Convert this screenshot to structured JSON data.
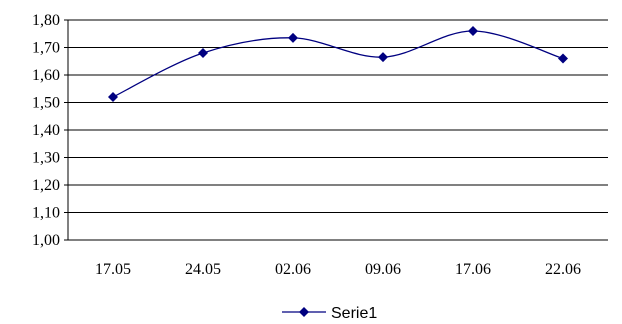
{
  "chart_data": {
    "type": "line",
    "title": "",
    "xlabel": "",
    "ylabel": "",
    "categories": [
      "17.05",
      "24.05",
      "02.06",
      "09.06",
      "17.06",
      "22.06"
    ],
    "series": [
      {
        "name": "Serie1",
        "values": [
          1.52,
          1.68,
          1.735,
          1.665,
          1.76,
          1.66
        ],
        "color": "#000080"
      }
    ],
    "ylim": [
      1.0,
      1.8
    ],
    "y_ticks": [
      "1,00",
      "1,10",
      "1,20",
      "1,30",
      "1,40",
      "1,50",
      "1,60",
      "1,70",
      "1,80"
    ],
    "grid": true,
    "smooth": true,
    "marker": "diamond",
    "legend_position": "bottom"
  }
}
